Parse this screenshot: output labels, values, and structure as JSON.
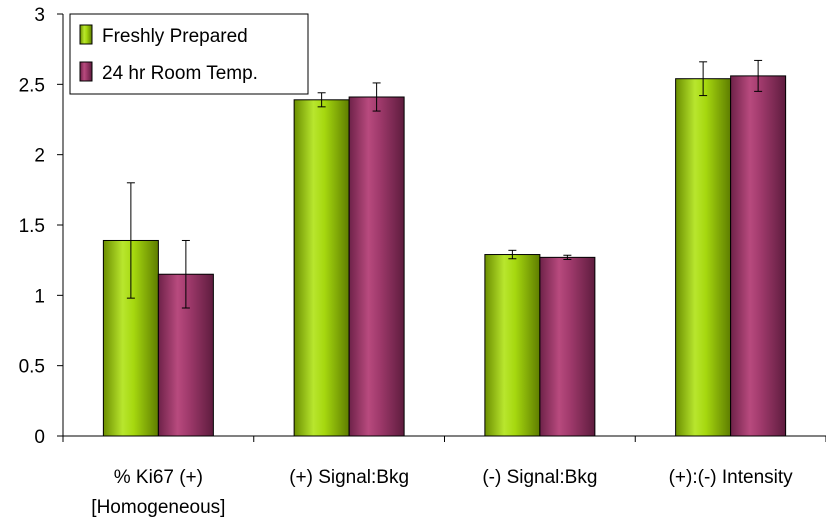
{
  "chart_data": {
    "type": "bar",
    "categories": [
      [
        "% Ki67 (+)",
        "[Homogeneous]"
      ],
      [
        "(+) Signal:Bkg"
      ],
      [
        "(-) Signal:Bkg"
      ],
      [
        "(+):(-) Intensity"
      ]
    ],
    "series": [
      {
        "name": "Freshly Prepared",
        "color": "#99cc00",
        "values": [
          1.39,
          2.39,
          1.29,
          2.54
        ],
        "errors": [
          0.41,
          0.05,
          0.03,
          0.12
        ]
      },
      {
        "name": "24 hr Room Temp.",
        "color": "#993366",
        "values": [
          1.15,
          2.41,
          1.27,
          2.56
        ],
        "errors": [
          0.24,
          0.1,
          0.015,
          0.11
        ]
      }
    ],
    "ylim": [
      0,
      3
    ],
    "yticks": [
      "0",
      "0.5",
      "1",
      "1.5",
      "2",
      "2.5",
      "3"
    ],
    "grid": false,
    "legend_position": "top-left",
    "error_bars": true
  }
}
